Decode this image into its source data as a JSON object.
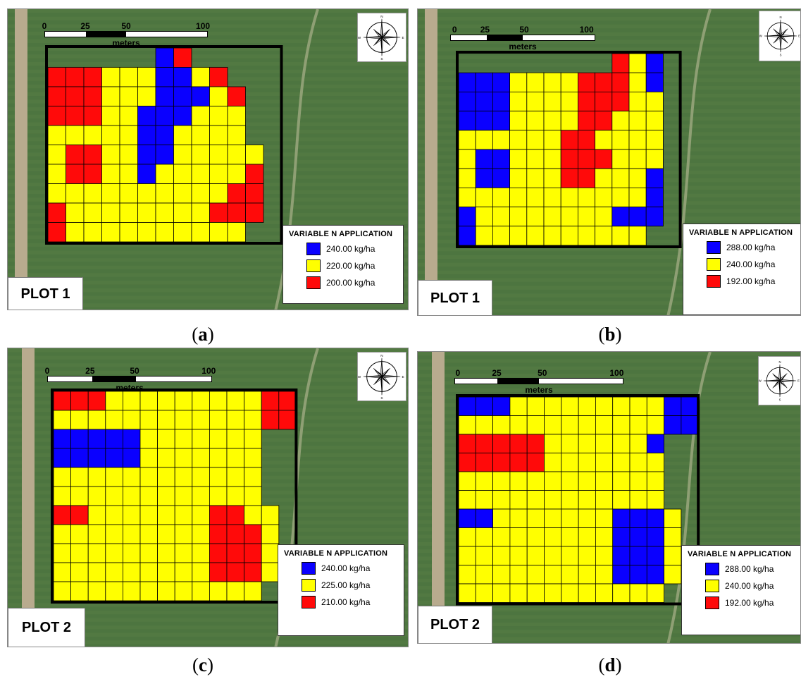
{
  "colors": {
    "high": "#0a00ff",
    "mid": "#ffff00",
    "low": "#ff0a0a"
  },
  "scale": {
    "ticks": [
      "0",
      "25",
      "50",
      "100"
    ],
    "units": "meters"
  },
  "legend_title": "VARIABLE  N  APPLICATION",
  "panels": [
    {
      "id": "a",
      "caption": "a",
      "plot_label": "PLOT 1",
      "legend": [
        {
          "label": "240.00 kg/ha",
          "color": "#0a00ff"
        },
        {
          "label": "220.00 kg/ha",
          "color": "#ffff00"
        },
        {
          "label": "200.00 kg/ha",
          "color": "#ff0a0a"
        }
      ],
      "grid": [
        "......BR.....",
        "RRRYYYBBYR...",
        "RRRYYYBBBYR..",
        "RRRYYBBBYYY..",
        "YYYYYBBYYYY..",
        "YRRYYBBYYYYY.",
        "YRRYYBYYYYYR.",
        "YYYYYYYYYYRR.",
        "RYYYYYYYYRRR.",
        "RYYYYYYYYYY.."
      ]
    },
    {
      "id": "b",
      "caption": "b",
      "plot_label": "PLOT 1",
      "legend": [
        {
          "label": "288.00 kg/ha",
          "color": "#0a00ff"
        },
        {
          "label": "240.00 kg/ha",
          "color": "#ffff00"
        },
        {
          "label": "192.00 kg/ha",
          "color": "#ff0a0a"
        }
      ],
      "grid": [
        ".........RYB.",
        "BBBYYYYRRRYB.",
        "BBBYYYYRRRYY.",
        "BBBYYYYRRYYY.",
        "YYYYYYRRYYYY.",
        "YBBYYYRRRYYY.",
        "YBBYYYRRYYYB.",
        "YYYYYYYYYYYB.",
        "BYYYYYYYYBBB.",
        "BYYYYYYYYYY.."
      ]
    },
    {
      "id": "c",
      "caption": "c",
      "plot_label": "PLOT 2",
      "legend": [
        {
          "label": "240.00 kg/ha",
          "color": "#0a00ff"
        },
        {
          "label": "225.00 kg/ha",
          "color": "#ffff00"
        },
        {
          "label": "210.00 kg/ha",
          "color": "#ff0a0a"
        }
      ],
      "grid": [
        "RRRYYYYYYYYYRR",
        "YYYYYYYYYYYYRR",
        "BBBBBYYYYYYY..",
        "BBBBBYYYYYYY..",
        "YYYYYYYYYYYY..",
        "YYYYYYYYYYYY..",
        "RRYYYYYYYRRYY.",
        "YYYYYYYYYRRRY.",
        "YYYYYYYYYRRRY.",
        "YYYYYYYYYRRRY.",
        "YYYYYYYYYYYY.."
      ]
    },
    {
      "id": "d",
      "caption": "d",
      "plot_label": "PLOT 2",
      "legend": [
        {
          "label": "288.00 kg/ha",
          "color": "#0a00ff"
        },
        {
          "label": "240.00 kg/ha",
          "color": "#ffff00"
        },
        {
          "label": "192.00 kg/ha",
          "color": "#ff0a0a"
        }
      ],
      "grid": [
        "BBBYYYYYYYYYBB",
        "YYYYYYYYYYYYBB",
        "RRRRRYYYYYYB..",
        "RRRRRYYYYYYY..",
        "YYYYYYYYYYYY..",
        "YYYYYYYYYYYY..",
        "BBYYYYYYYBBBY.",
        "YYYYYYYYYBBBY.",
        "YYYYYYYYYBBBY.",
        "YYYYYYYYYBBBY.",
        "YYYYYYYYYYYY.."
      ]
    }
  ]
}
